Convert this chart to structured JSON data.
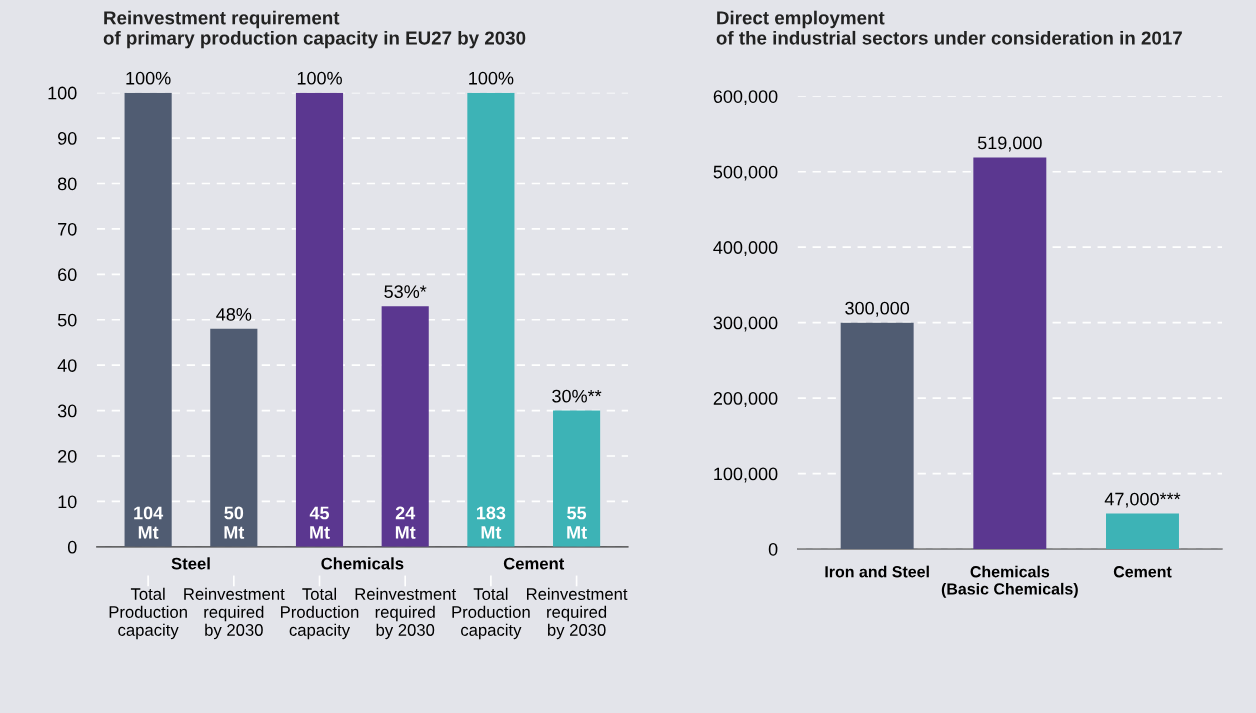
{
  "chart_data": [
    {
      "type": "bar",
      "title": "Reinvestment requirement\nof primary production capacity in EU27 by 2030",
      "categories": [
        "Total\nProduction\ncapacity",
        "Reinvestment\nrequired\nby 2030",
        "Total\nProduction\ncapacity",
        "Reinvestment\nrequired\nby 2030",
        "Total\nProduction\ncapacity",
        "Reinvestment\nrequired\nby 2030"
      ],
      "values": [
        100,
        48,
        100,
        53,
        100,
        30
      ],
      "value_labels": [
        "100%",
        "48%",
        "100%",
        "53%*",
        "100%",
        "30%**"
      ],
      "colors": [
        "#505c72",
        "#505c72",
        "#5b3790",
        "#5b3790",
        "#3db3b6",
        "#3db3b6"
      ],
      "annotations": [
        "104\nMt",
        "50\nMt",
        "45\nMt",
        "24\nMt",
        "183\nMt",
        "55\nMt",
        "Steel",
        "Chemicals",
        "Cement"
      ],
      "ylim": [
        0,
        100
      ],
      "yticks": [
        0,
        10,
        20,
        30,
        40,
        50,
        60,
        70,
        80,
        90,
        100
      ],
      "grid": "y"
    },
    {
      "type": "bar",
      "title": "Direct employment\nof the industrial sectors under consideration in 2017",
      "categories": [
        "Iron and Steel",
        "Chemicals\n(Basic Chemicals)",
        "Cement"
      ],
      "values": [
        300000,
        519000,
        47000
      ],
      "value_labels": [
        "300,000",
        "519,000",
        "47,000***"
      ],
      "colors": [
        "#505c72",
        "#5b3790",
        "#3db3b6"
      ],
      "ylim": [
        0,
        600000
      ],
      "yticks": [
        0,
        {
          "value": 100000,
          "label": "100,000"
        },
        {
          "value": 200000,
          "label": "200,000"
        },
        {
          "value": 300000,
          "label": "300,000"
        },
        {
          "value": 400000,
          "label": "400,000"
        },
        {
          "value": 500000,
          "label": "500,000"
        },
        {
          "value": 600000,
          "label": "600,000"
        }
      ],
      "grid": "y"
    }
  ]
}
